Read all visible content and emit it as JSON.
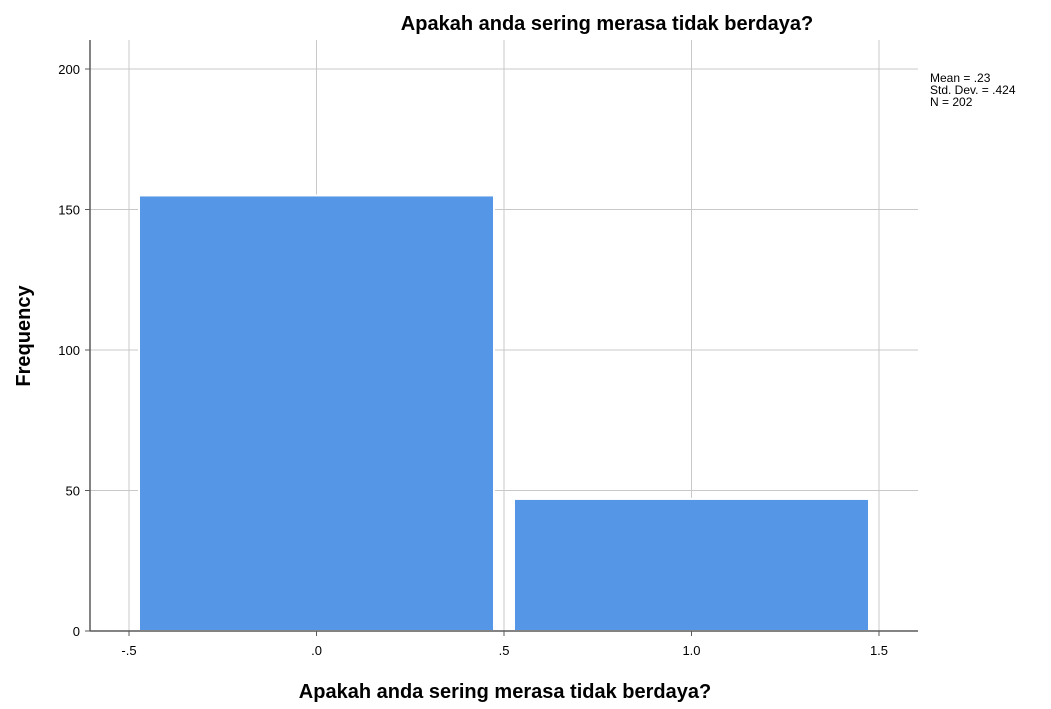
{
  "chart_data": {
    "type": "bar",
    "title": "Apakah anda sering merasa tidak berdaya?",
    "xlabel": "Apakah anda sering merasa tidak berdaya?",
    "ylabel": "Frequency",
    "xlim": [
      -0.5,
      1.5
    ],
    "ylim": [
      0,
      200
    ],
    "x_ticks": [
      "-.5",
      ".0",
      ".5",
      "1.0",
      "1.5"
    ],
    "x_tick_values": [
      -0.5,
      0.0,
      0.5,
      1.0,
      1.5
    ],
    "y_ticks": [
      "0",
      "50",
      "100",
      "150",
      "200"
    ],
    "y_tick_values": [
      0,
      50,
      100,
      150,
      200
    ],
    "bins": [
      {
        "x0": -0.5,
        "x1": 0.5,
        "value": 155
      },
      {
        "x0": 0.5,
        "x1": 1.5,
        "value": 47
      }
    ],
    "bar_color": "#5596e6",
    "grid": true,
    "stats": [
      "Mean = .23",
      "Std. Dev. = .424",
      "N = 202"
    ]
  }
}
